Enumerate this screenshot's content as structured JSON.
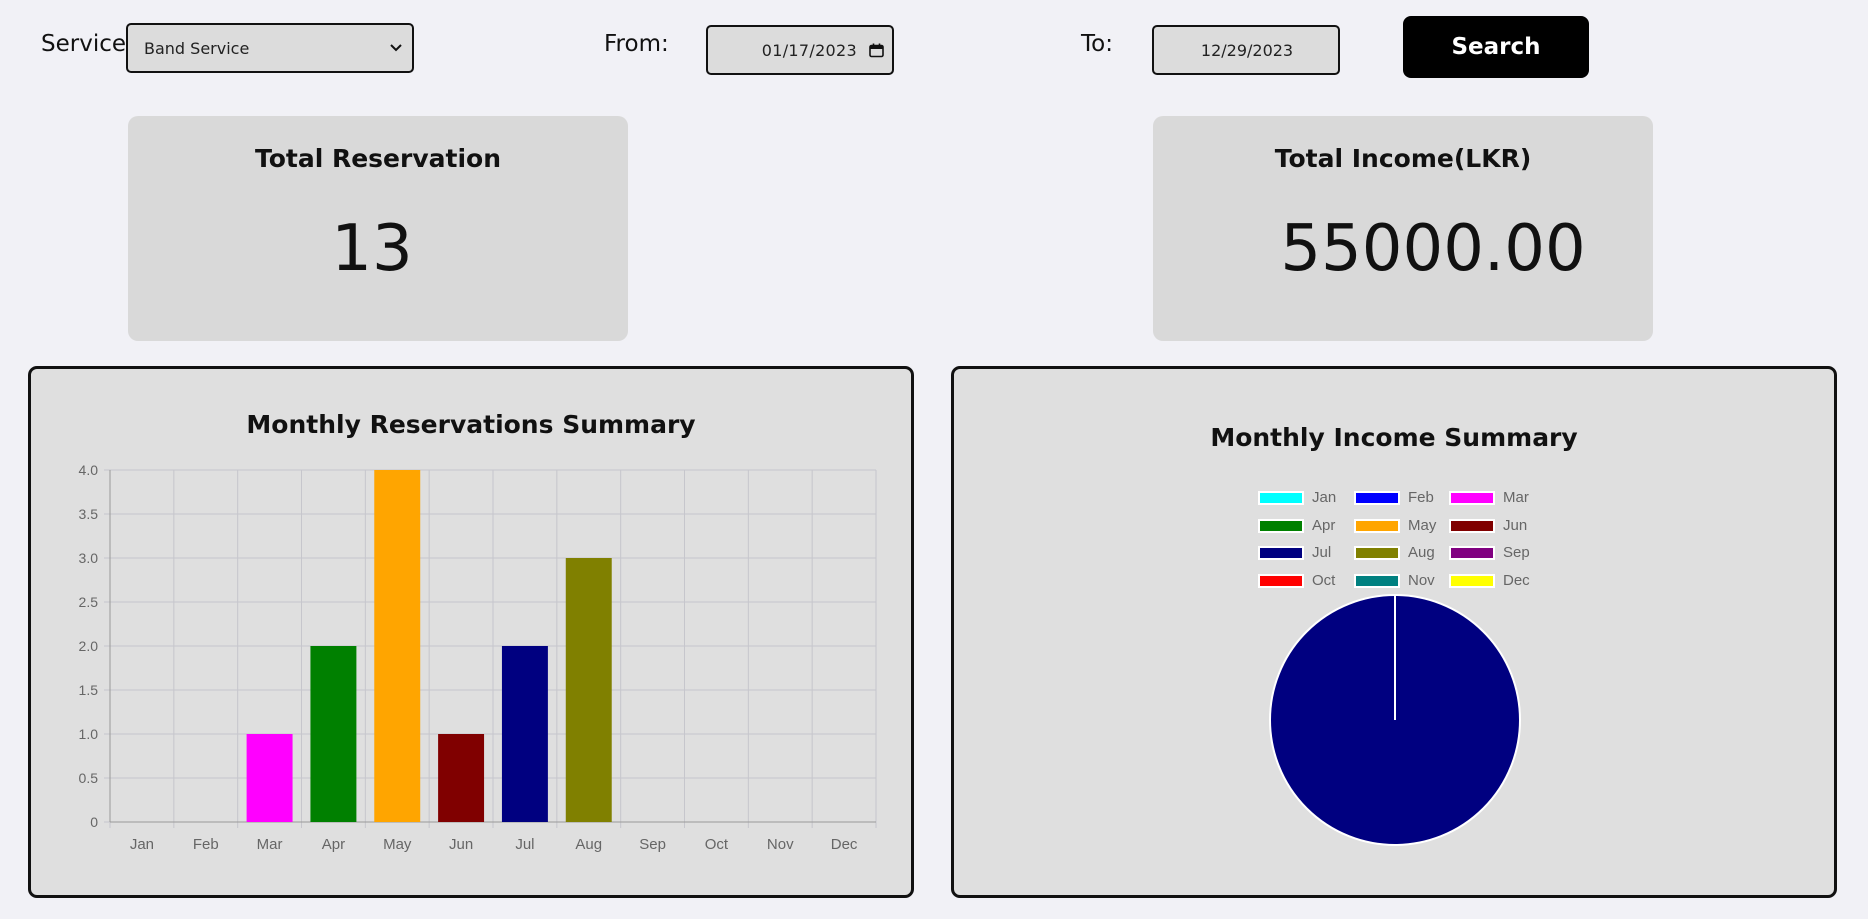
{
  "filters": {
    "service_label": "Service",
    "service_value": "Band Service",
    "from_label": "From:",
    "from_value": "01/17/2023",
    "to_label": "To:",
    "to_value": "12/29/2023",
    "search_label": "Search"
  },
  "stats": {
    "reservation_title": "Total Reservation",
    "reservation_value": "13",
    "income_title": "Total Income(LKR)",
    "income_value": "55000.00"
  },
  "panels": {
    "bar_title": "Monthly Reservations Summary",
    "pie_title": "Monthly Income Summary"
  },
  "months": [
    "Jan",
    "Feb",
    "Mar",
    "Apr",
    "May",
    "Jun",
    "Jul",
    "Aug",
    "Sep",
    "Oct",
    "Nov",
    "Dec"
  ],
  "colors": [
    "#00ffff",
    "#0000ff",
    "#ff00ff",
    "#008000",
    "#ffa500",
    "#800000",
    "#000080",
    "#808000",
    "#800080",
    "#ff0000",
    "#008080",
    "#ffff00"
  ],
  "chart_data": [
    {
      "type": "bar",
      "title": "Monthly Reservations Summary",
      "categories": [
        "Jan",
        "Feb",
        "Mar",
        "Apr",
        "May",
        "Jun",
        "Jul",
        "Aug",
        "Sep",
        "Oct",
        "Nov",
        "Dec"
      ],
      "values": [
        0,
        0,
        1,
        2,
        4,
        1,
        2,
        3,
        0,
        0,
        0,
        0
      ],
      "ylim": [
        0,
        4
      ],
      "yticks": [
        "0",
        "0.5",
        "1.0",
        "1.5",
        "2.0",
        "2.5",
        "3.0",
        "3.5",
        "4.0"
      ],
      "grid": true,
      "legend": "none"
    },
    {
      "type": "pie",
      "title": "Monthly Income Summary",
      "categories": [
        "Jan",
        "Feb",
        "Mar",
        "Apr",
        "May",
        "Jun",
        "Jul",
        "Aug",
        "Sep",
        "Oct",
        "Nov",
        "Dec"
      ],
      "values": [
        0,
        0,
        0,
        0,
        0,
        0,
        55000,
        0,
        0,
        0,
        0,
        0
      ],
      "legend": "top"
    }
  ]
}
